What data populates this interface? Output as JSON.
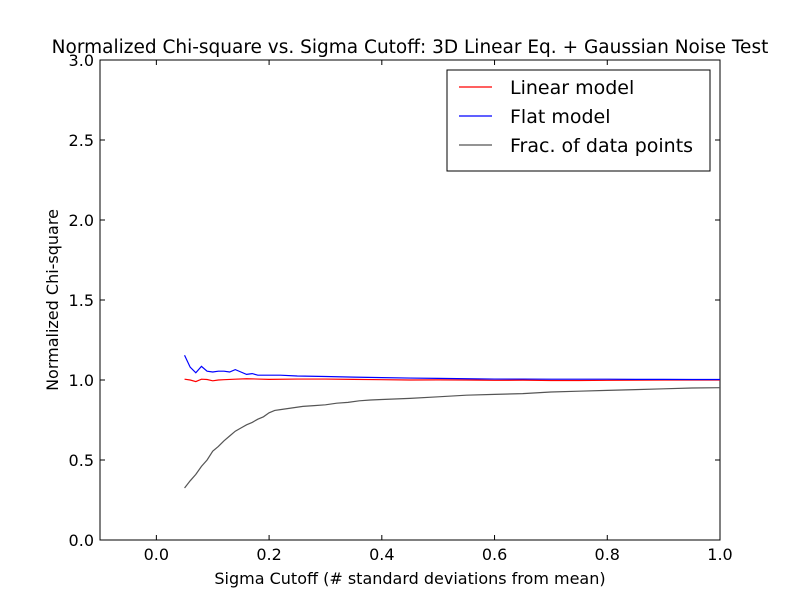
{
  "chart_data": {
    "type": "line",
    "title": "Normalized Chi-square vs. Sigma Cutoff: 3D Linear Eq. + Gaussian Noise Test",
    "xlabel": "Sigma Cutoff  (# standard deviations from mean)",
    "ylabel": "Normalized Chi-square",
    "xlim": [
      -0.1,
      1.0
    ],
    "ylim": [
      0.0,
      3.0
    ],
    "xticks": [
      "0.0",
      "0.2",
      "0.4",
      "0.6",
      "0.8",
      "1.0"
    ],
    "yticks": [
      "0.0",
      "0.5",
      "1.0",
      "1.5",
      "2.0",
      "2.5",
      "3.0"
    ],
    "grid": false,
    "legend_position": "top-right",
    "series": [
      {
        "name": "Linear model",
        "color": "#ff0000",
        "points": [
          [
            0.05,
            1.005
          ],
          [
            0.06,
            1.0
          ],
          [
            0.07,
            0.99
          ],
          [
            0.08,
            1.005
          ],
          [
            0.09,
            1.003
          ],
          [
            0.1,
            0.995
          ],
          [
            0.11,
            1.0
          ],
          [
            0.12,
            1.002
          ],
          [
            0.14,
            1.005
          ],
          [
            0.16,
            1.008
          ],
          [
            0.18,
            1.006
          ],
          [
            0.2,
            1.004
          ],
          [
            0.25,
            1.006
          ],
          [
            0.3,
            1.006
          ],
          [
            0.35,
            1.004
          ],
          [
            0.4,
            1.002
          ],
          [
            0.45,
            1.0
          ],
          [
            0.5,
            1.001
          ],
          [
            0.55,
            1.0
          ],
          [
            0.6,
            0.998
          ],
          [
            0.65,
            0.999
          ],
          [
            0.7,
            0.997
          ],
          [
            0.75,
            0.997
          ],
          [
            0.8,
            0.998
          ],
          [
            0.85,
            0.999
          ],
          [
            0.9,
            1.0
          ],
          [
            0.95,
            1.0
          ],
          [
            1.0,
            1.0
          ]
        ]
      },
      {
        "name": "Flat model",
        "color": "#0000ff",
        "points": [
          [
            0.05,
            1.155
          ],
          [
            0.06,
            1.08
          ],
          [
            0.07,
            1.045
          ],
          [
            0.08,
            1.085
          ],
          [
            0.09,
            1.055
          ],
          [
            0.1,
            1.05
          ],
          [
            0.11,
            1.055
          ],
          [
            0.12,
            1.055
          ],
          [
            0.13,
            1.05
          ],
          [
            0.14,
            1.065
          ],
          [
            0.15,
            1.05
          ],
          [
            0.16,
            1.035
          ],
          [
            0.17,
            1.04
          ],
          [
            0.18,
            1.03
          ],
          [
            0.2,
            1.03
          ],
          [
            0.22,
            1.03
          ],
          [
            0.25,
            1.025
          ],
          [
            0.3,
            1.022
          ],
          [
            0.35,
            1.018
          ],
          [
            0.4,
            1.015
          ],
          [
            0.45,
            1.012
          ],
          [
            0.5,
            1.01
          ],
          [
            0.55,
            1.008
          ],
          [
            0.6,
            1.006
          ],
          [
            0.65,
            1.006
          ],
          [
            0.7,
            1.005
          ],
          [
            0.75,
            1.005
          ],
          [
            0.8,
            1.005
          ],
          [
            0.85,
            1.004
          ],
          [
            0.9,
            1.004
          ],
          [
            0.95,
            1.003
          ],
          [
            1.0,
            1.003
          ]
        ]
      },
      {
        "name": "Frac. of data points",
        "color": "#555555",
        "points": [
          [
            0.05,
            0.325
          ],
          [
            0.06,
            0.37
          ],
          [
            0.07,
            0.41
          ],
          [
            0.08,
            0.46
          ],
          [
            0.09,
            0.5
          ],
          [
            0.1,
            0.555
          ],
          [
            0.11,
            0.585
          ],
          [
            0.12,
            0.62
          ],
          [
            0.13,
            0.65
          ],
          [
            0.14,
            0.68
          ],
          [
            0.15,
            0.7
          ],
          [
            0.16,
            0.72
          ],
          [
            0.17,
            0.735
          ],
          [
            0.18,
            0.755
          ],
          [
            0.19,
            0.77
          ],
          [
            0.2,
            0.795
          ],
          [
            0.21,
            0.81
          ],
          [
            0.22,
            0.815
          ],
          [
            0.24,
            0.825
          ],
          [
            0.26,
            0.835
          ],
          [
            0.28,
            0.84
          ],
          [
            0.3,
            0.845
          ],
          [
            0.32,
            0.855
          ],
          [
            0.34,
            0.86
          ],
          [
            0.36,
            0.87
          ],
          [
            0.38,
            0.875
          ],
          [
            0.4,
            0.878
          ],
          [
            0.45,
            0.885
          ],
          [
            0.5,
            0.895
          ],
          [
            0.55,
            0.905
          ],
          [
            0.6,
            0.91
          ],
          [
            0.65,
            0.915
          ],
          [
            0.7,
            0.925
          ],
          [
            0.75,
            0.93
          ],
          [
            0.8,
            0.935
          ],
          [
            0.85,
            0.94
          ],
          [
            0.9,
            0.945
          ],
          [
            0.95,
            0.95
          ],
          [
            1.0,
            0.952
          ]
        ]
      }
    ]
  }
}
